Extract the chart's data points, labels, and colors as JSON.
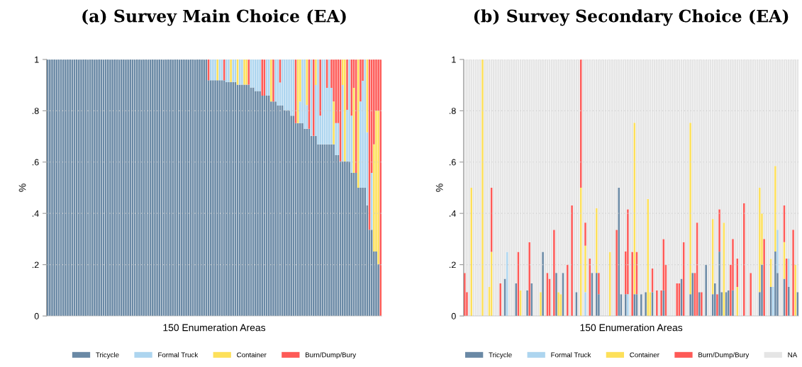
{
  "chart_data": [
    {
      "type": "bar",
      "stacked": true,
      "title": "(a) Survey Main Choice (EA)",
      "xlabel": "150 Enumeration Areas",
      "ylabel": "%",
      "categories": [
        null,
        null,
        null,
        null,
        null,
        null,
        null,
        null,
        null,
        null,
        null,
        null,
        null,
        null,
        null,
        null,
        null,
        null,
        null,
        null,
        null,
        null,
        null,
        null,
        null,
        null,
        null,
        null,
        null,
        null,
        null,
        null,
        null,
        null,
        null,
        null,
        null,
        null,
        null,
        null,
        null,
        null,
        null,
        null,
        null,
        null,
        null,
        null,
        null,
        null,
        null,
        null,
        null,
        null,
        null,
        null,
        null,
        null,
        null,
        null,
        null,
        null,
        null,
        null,
        null,
        null,
        null,
        null,
        null,
        null,
        null,
        null,
        null,
        null,
        null,
        null,
        null,
        null,
        null,
        null,
        null,
        null,
        null,
        null,
        null,
        null,
        null,
        null,
        null,
        null,
        null,
        null,
        null,
        null,
        null,
        null,
        null,
        null,
        null,
        null,
        null,
        null,
        null,
        null,
        null,
        null,
        null,
        null,
        null,
        null,
        null,
        null,
        null,
        null,
        null,
        null,
        null,
        null,
        null,
        null,
        null,
        null,
        null,
        null,
        null,
        null,
        null,
        null,
        null,
        null,
        null,
        null,
        null,
        null,
        null,
        null,
        null,
        null,
        null,
        null,
        null,
        null,
        null,
        null,
        null,
        null,
        null,
        null,
        null,
        null
      ],
      "ylim": [
        0,
        1
      ],
      "yticks": [
        0,
        {
          "value": 0.2,
          "label": ".2"
        },
        {
          "value": 0.4,
          "label": ".4"
        },
        {
          "value": 0.6,
          "label": ".6"
        },
        {
          "value": 0.8,
          "label": ".8"
        },
        1
      ],
      "grid": "y",
      "legend": "bottom",
      "series": [
        {
          "name": "Tricycle",
          "color": "#6a89a5",
          "values": [
            1,
            1,
            1,
            1,
            1,
            1,
            1,
            1,
            1,
            1,
            1,
            1,
            1,
            1,
            1,
            1,
            1,
            1,
            1,
            1,
            1,
            1,
            1,
            1,
            1,
            1,
            1,
            1,
            1,
            1,
            1,
            1,
            1,
            1,
            1,
            1,
            1,
            1,
            1,
            1,
            1,
            1,
            1,
            1,
            1,
            1,
            1,
            1,
            1,
            1,
            1,
            1,
            1,
            1,
            1,
            1,
            1,
            1,
            1,
            1,
            1,
            1,
            1,
            1,
            1,
            1,
            1,
            1,
            1,
            1,
            1,
            1,
            0.919,
            0.919,
            0.919,
            0.919,
            0.919,
            0.919,
            0.919,
            0.919,
            0.912,
            0.912,
            0.912,
            0.912,
            0.912,
            0.902,
            0.902,
            0.902,
            0.902,
            0.902,
            0.902,
            0.891,
            0.891,
            0.877,
            0.877,
            0.877,
            0.859,
            0.859,
            0.859,
            0.859,
            0.836,
            0.836,
            0.836,
            0.82,
            0.82,
            0.82,
            0.802,
            0.802,
            0.802,
            0.781,
            0.781,
            0.752,
            0.752,
            0.752,
            0.752,
            0.73,
            0.73,
            0.73,
            0.702,
            0.702,
            0.702,
            0.669,
            0.669,
            0.669,
            0.669,
            0.669,
            0.669,
            0.669,
            0.669,
            0.627,
            0.627,
            0.603,
            0.603,
            0.603,
            0.603,
            0.603,
            0.558,
            0.558,
            0.558,
            0.5,
            0.5,
            0.5,
            0.5,
            0.431,
            0.336,
            0.336,
            0.251,
            0.251,
            0.202,
            0
          ]
        },
        {
          "name": "Formal Truck",
          "color": "#add5ef",
          "values": [
            0,
            0,
            0,
            0,
            0,
            0,
            0,
            0,
            0,
            0,
            0,
            0,
            0,
            0,
            0,
            0,
            0,
            0,
            0,
            0,
            0,
            0,
            0,
            0,
            0,
            0,
            0,
            0,
            0,
            0,
            0,
            0,
            0,
            0,
            0,
            0,
            0,
            0,
            0,
            0,
            0,
            0,
            0,
            0,
            0,
            0,
            0,
            0,
            0,
            0,
            0,
            0,
            0,
            0,
            0,
            0,
            0,
            0,
            0,
            0,
            0,
            0,
            0,
            0,
            0,
            0,
            0,
            0,
            0,
            0,
            0,
            0,
            0,
            0.081,
            0.081,
            0.081,
            0,
            0.081,
            0.081,
            0,
            0.088,
            0.088,
            0,
            0.088,
            0.088,
            0,
            0.098,
            0.098,
            0,
            0,
            0,
            0.109,
            0.109,
            0.123,
            0.123,
            0.123,
            0,
            0,
            0.141,
            0.141,
            0,
            0,
            0.164,
            0.18,
            0.09,
            0.18,
            0.198,
            0.198,
            0.198,
            0.219,
            0.219,
            0,
            0,
            0.084,
            0.248,
            0.27,
            0.092,
            0,
            0.298,
            0,
            0.198,
            0.331,
            0.112,
            0.331,
            0.331,
            0.22,
            0.331,
            0.22,
            0,
            0.125,
            0.125,
            0,
            0.297,
            0,
            0.201,
            0.397,
            0.223,
            0,
            0,
            0,
            0.336,
            0.417,
            0.5,
            0.285,
            0,
            0.222,
            0,
            0,
            0,
            0
          ]
        },
        {
          "name": "Container",
          "color": "#fde05a",
          "values": [
            0,
            0,
            0,
            0,
            0,
            0,
            0,
            0,
            0,
            0,
            0,
            0,
            0,
            0,
            0,
            0,
            0,
            0,
            0,
            0,
            0,
            0,
            0,
            0,
            0,
            0,
            0,
            0,
            0,
            0,
            0,
            0,
            0,
            0,
            0,
            0,
            0,
            0,
            0,
            0,
            0,
            0,
            0,
            0,
            0,
            0,
            0,
            0,
            0,
            0,
            0,
            0,
            0,
            0,
            0,
            0,
            0,
            0,
            0,
            0,
            0,
            0,
            0,
            0,
            0,
            0,
            0,
            0,
            0,
            0,
            0,
            0,
            0,
            0,
            0,
            0,
            0.081,
            0,
            0,
            0,
            0,
            0,
            0.088,
            0,
            0,
            0.098,
            0,
            0,
            0.098,
            0.098,
            0,
            0,
            0,
            0,
            0,
            0,
            0,
            0,
            0,
            0,
            0.164,
            0,
            0,
            0,
            0,
            0,
            0,
            0,
            0,
            0,
            0,
            0,
            0.248,
            0.164,
            0,
            0,
            0.178,
            0,
            0,
            0,
            0.1,
            0,
            0,
            0,
            0,
            0,
            0,
            0,
            0.167,
            0,
            0,
            0,
            0.1,
            0.397,
            0,
            0,
            0,
            0.331,
            0,
            0.5,
            0,
            0,
            0,
            0.284,
            0,
            0,
            0.418,
            0.549,
            0.598,
            0
          ]
        },
        {
          "name": "Burn/Dump/Bury",
          "color": "#fe5a57",
          "values": [
            0,
            0,
            0,
            0,
            0,
            0,
            0,
            0,
            0,
            0,
            0,
            0,
            0,
            0,
            0,
            0,
            0,
            0,
            0,
            0,
            0,
            0,
            0,
            0,
            0,
            0,
            0,
            0,
            0,
            0,
            0,
            0,
            0,
            0,
            0,
            0,
            0,
            0,
            0,
            0,
            0,
            0,
            0,
            0,
            0,
            0,
            0,
            0,
            0,
            0,
            0,
            0,
            0,
            0,
            0,
            0,
            0,
            0,
            0,
            0,
            0,
            0,
            0,
            0,
            0,
            0,
            0,
            0,
            0,
            0,
            0,
            0,
            0.081,
            0,
            0,
            0,
            0,
            0,
            0,
            0.081,
            0,
            0,
            0,
            0,
            0,
            0,
            0,
            0,
            0,
            0,
            0.098,
            0,
            0,
            0,
            0,
            0,
            0.141,
            0.141,
            0,
            0,
            0,
            0.164,
            0,
            0,
            0.09,
            0,
            0,
            0,
            0,
            0,
            0,
            0.248,
            0,
            0,
            0,
            0,
            0,
            0.27,
            0,
            0.298,
            0,
            0,
            0.219,
            0,
            0,
            0.111,
            0,
            0.111,
            0.164,
            0.248,
            0.248,
            0.397,
            0,
            0,
            0.196,
            0,
            0.219,
            0.111,
            0.442,
            0,
            0.164,
            0.083,
            0,
            0,
            0.664,
            0.442,
            0.331,
            0.2,
            0.2,
            1
          ]
        }
      ]
    },
    {
      "type": "bar",
      "stacked": true,
      "title": "(b) Survey Secondary Choice (EA)",
      "xlabel": "150 Enumeration Areas",
      "ylabel": "%",
      "categories": [
        null,
        null,
        null,
        null,
        null,
        null,
        null,
        null,
        null,
        null,
        null,
        null,
        null,
        null,
        null,
        null,
        null,
        null,
        null,
        null,
        null,
        null,
        null,
        null,
        null,
        null,
        null,
        null,
        null,
        null,
        null,
        null,
        null,
        null,
        null,
        null,
        null,
        null,
        null,
        null,
        null,
        null,
        null,
        null,
        null,
        null,
        null,
        null,
        null,
        null,
        null,
        null,
        null,
        null,
        null,
        null,
        null,
        null,
        null,
        null,
        null,
        null,
        null,
        null,
        null,
        null,
        null,
        null,
        null,
        null,
        null,
        null,
        null,
        null,
        null,
        null,
        null,
        null,
        null,
        null,
        null,
        null,
        null,
        null,
        null,
        null,
        null,
        null,
        null,
        null,
        null,
        null,
        null,
        null,
        null,
        null,
        null,
        null,
        null,
        null,
        null,
        null,
        null,
        null,
        null,
        null,
        null,
        null,
        null,
        null,
        null,
        null,
        null,
        null,
        null,
        null,
        null,
        null,
        null,
        null,
        null,
        null,
        null,
        null,
        null,
        null,
        null,
        null,
        null,
        null,
        null,
        null,
        null,
        null,
        null,
        null,
        null,
        null,
        null,
        null,
        null,
        null,
        null,
        null,
        null,
        null,
        null,
        null,
        null,
        null
      ],
      "ylim": [
        0,
        1
      ],
      "yticks": [
        0,
        {
          "value": 0.2,
          "label": ".2"
        },
        {
          "value": 0.4,
          "label": ".4"
        },
        {
          "value": 0.6,
          "label": ".6"
        },
        {
          "value": 0.8,
          "label": ".8"
        },
        1
      ],
      "grid": "y",
      "legend": "bottom",
      "series": [
        {
          "name": "Tricycle",
          "color": "#6a89a5",
          "values": [
            0,
            0,
            0,
            0,
            0,
            0,
            0,
            0,
            0,
            0,
            0,
            0,
            0,
            0,
            0,
            0,
            0,
            0,
            0.145,
            0,
            0,
            0,
            0,
            0.127,
            0,
            0,
            0,
            0,
            0.1,
            0,
            0.127,
            0,
            0,
            0,
            0,
            0.25,
            0,
            0,
            0,
            0,
            0,
            0.168,
            0,
            0,
            0.168,
            0,
            0,
            0,
            0,
            0,
            0.093,
            0,
            0,
            0,
            0,
            0,
            0,
            0.168,
            0,
            0.168,
            0.085,
            0,
            0,
            0,
            0,
            0,
            0,
            0,
            0,
            0.5,
            0.085,
            0,
            0.085,
            0,
            0,
            0,
            0.085,
            0.085,
            0,
            0.085,
            0,
            0.093,
            0,
            0,
            0.093,
            0,
            0,
            0,
            0,
            0.1,
            0,
            0,
            0,
            0,
            0,
            0,
            0,
            0.145,
            0,
            0,
            0,
            0.085,
            0.168,
            0,
            0,
            0.093,
            0,
            0,
            0.2,
            0,
            0,
            0.085,
            0.127,
            0,
            0.251,
            0.093,
            0,
            0.093,
            0.1,
            0,
            0.1,
            0,
            0,
            0,
            0,
            0,
            0,
            0,
            0,
            0,
            0,
            0,
            0.093,
            0.2,
            0,
            0,
            0,
            0.113,
            0,
            0.251,
            0.168,
            0,
            0,
            0.145,
            0,
            0.113,
            0,
            0,
            0,
            0.093
          ]
        },
        {
          "name": "Formal Truck",
          "color": "#add5ef",
          "values": [
            0,
            0,
            0,
            0,
            0,
            0,
            0,
            0,
            0,
            0,
            0,
            0,
            0,
            0,
            0,
            0,
            0,
            0,
            0,
            0.25,
            0,
            0,
            0,
            0,
            0,
            0,
            0,
            0,
            0,
            0,
            0,
            0,
            0,
            0,
            0,
            0,
            0,
            0,
            0,
            0,
            0,
            0,
            0,
            0,
            0,
            0,
            0,
            0,
            0,
            0,
            0,
            0,
            0,
            0,
            0.093,
            0,
            0,
            0,
            0,
            0,
            0,
            0,
            0,
            0,
            0,
            0,
            0,
            0,
            0,
            0,
            0,
            0,
            0,
            0.085,
            0,
            0,
            0,
            0,
            0,
            0,
            0,
            0,
            0,
            0,
            0,
            0,
            0,
            0,
            0,
            0,
            0,
            0,
            0,
            0,
            0,
            0,
            0,
            0,
            0,
            0,
            0,
            0,
            0,
            0,
            0,
            0,
            0,
            0,
            0,
            0,
            0,
            0,
            0,
            0,
            0,
            0,
            0,
            0,
            0,
            0,
            0,
            0,
            0,
            0,
            0,
            0,
            0,
            0,
            0,
            0,
            0,
            0,
            0,
            0,
            0,
            0,
            0,
            0,
            0.113,
            0,
            0.168,
            0,
            0,
            0,
            0,
            0.111,
            0,
            0,
            0,
            0
          ]
        },
        {
          "name": "Container",
          "color": "#fde05a",
          "values": [
            0,
            0,
            0,
            0.5,
            0,
            0,
            0,
            0,
            1,
            0,
            0,
            0.113,
            0.25,
            0,
            0,
            0,
            0,
            0,
            0,
            0,
            0,
            0,
            0,
            0,
            0,
            0.1,
            0,
            0,
            0,
            0,
            0,
            0,
            0,
            0,
            0.093,
            0,
            0,
            0,
            0,
            0,
            0,
            0,
            0.093,
            0.085,
            0,
            0,
            0,
            0,
            0,
            0,
            0,
            0,
            0.5,
            0,
            0.181,
            0,
            0,
            0,
            0,
            0.252,
            0,
            0,
            0,
            0,
            0,
            0.25,
            0,
            0,
            0,
            0,
            0,
            0,
            0,
            0,
            0,
            0,
            0.668,
            0,
            0,
            0,
            0,
            0,
            0.456,
            0.093,
            0,
            0,
            0,
            0,
            0,
            0,
            0,
            0,
            0,
            0,
            0,
            0,
            0,
            0,
            0,
            0,
            0,
            0.668,
            0,
            0,
            0,
            0,
            0,
            0,
            0,
            0,
            0,
            0.293,
            0,
            0,
            0,
            0,
            0.364,
            0,
            0,
            0,
            0,
            0,
            0.113,
            0,
            0,
            0,
            0,
            0,
            0,
            0,
            0,
            0,
            0.407,
            0.2,
            0,
            0,
            0,
            0.11,
            0,
            0.334,
            0,
            0,
            0,
            0.143,
            0,
            0,
            0,
            0,
            0.2,
            0
          ]
        },
        {
          "name": "Burn/Dump/Bury",
          "color": "#fe5a57",
          "values": [
            0.168,
            0.093,
            0,
            0,
            0,
            0,
            0,
            0,
            0,
            0,
            0,
            0,
            0.25,
            0,
            0,
            0,
            0.127,
            0,
            0,
            0,
            0,
            0,
            0,
            0,
            0.25,
            0,
            0,
            0,
            0,
            0.288,
            0,
            0,
            0,
            0,
            0,
            0,
            0,
            0.168,
            0.145,
            0,
            0.336,
            0,
            0,
            0,
            0,
            0,
            0.2,
            0,
            0.431,
            0,
            0,
            0,
            0.5,
            0,
            0.09,
            0,
            0.224,
            0,
            0,
            0,
            0.083,
            0,
            0,
            0,
            0,
            0,
            0,
            0,
            0.336,
            0,
            0,
            0,
            0.167,
            0.331,
            0,
            0.25,
            0,
            0.165,
            0,
            0,
            0,
            0,
            0,
            0,
            0.092,
            0,
            0.1,
            0,
            0.1,
            0.2,
            0.2,
            0,
            0,
            0,
            0,
            0.127,
            0.127,
            0,
            0.288,
            0,
            0,
            0,
            0,
            0.168,
            0.364,
            0,
            0.093,
            0,
            0,
            0,
            0,
            0,
            0,
            0.085,
            0.165,
            0,
            0,
            0,
            0,
            0.2,
            0.2,
            0,
            0.111,
            0,
            0,
            0.44,
            0,
            0,
            0.168,
            0,
            0,
            0,
            0,
            0,
            0.3,
            0,
            0,
            0,
            0,
            0,
            0,
            0,
            0,
            0.143,
            0.224,
            0,
            0,
            0.336,
            0,
            0
          ]
        },
        {
          "name": "NA",
          "color": "#e5e5e5",
          "values": [
            0.832,
            0.907,
            1,
            0.5,
            1,
            1,
            1,
            1,
            0,
            1,
            1,
            0.887,
            0.5,
            1,
            1,
            1,
            0.873,
            1,
            0.855,
            0.75,
            1,
            1,
            1,
            0.873,
            0.75,
            0.9,
            1,
            1,
            0.9,
            0.712,
            0.873,
            1,
            1,
            1,
            0.907,
            0.75,
            1,
            0.832,
            0.855,
            1,
            0.664,
            0.832,
            0.907,
            0.915,
            0.832,
            1,
            0.8,
            1,
            0.569,
            1,
            0.907,
            1,
            0,
            1,
            0.636,
            1,
            0.776,
            0.832,
            1,
            0.58,
            0.832,
            1,
            1,
            1,
            1,
            0.75,
            1,
            1,
            0.664,
            0.5,
            0.915,
            1,
            0.748,
            0.584,
            1,
            0.75,
            0.247,
            0.75,
            1,
            0.915,
            1,
            0.907,
            0.544,
            0.907,
            0.815,
            1,
            0.9,
            1,
            0.9,
            0.7,
            0.8,
            1,
            1,
            1,
            1,
            0.873,
            0.873,
            0.855,
            0.712,
            1,
            1,
            0.247,
            0.832,
            0.832,
            0.636,
            0.907,
            0.907,
            1,
            0.8,
            1,
            1,
            0.622,
            0.873,
            0.915,
            0.584,
            0.907,
            0.636,
            0.907,
            0.9,
            0.8,
            0.7,
            1,
            0.776,
            1,
            1,
            0.56,
            1,
            1,
            0.832,
            1,
            1,
            1,
            0.5,
            0.6,
            0.7,
            1,
            1,
            0.777,
            0.887,
            0.415,
            0.664,
            1,
            1,
            0.569,
            0.776,
            0.776,
            1,
            0.664,
            0.8,
            0.907
          ]
        }
      ]
    }
  ]
}
